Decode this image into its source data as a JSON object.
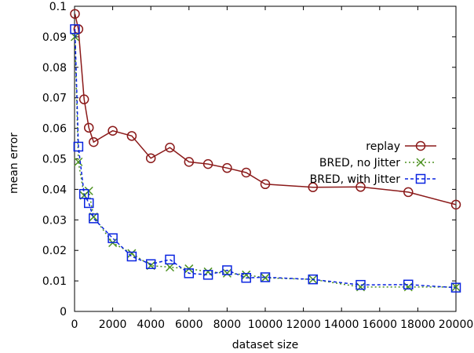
{
  "chart_data": {
    "type": "line",
    "xlabel": "dataset size",
    "ylabel": "mean error",
    "xlim": [
      0,
      20000
    ],
    "ylim": [
      0,
      0.1
    ],
    "x_ticks": [
      0,
      2000,
      4000,
      6000,
      8000,
      10000,
      12000,
      14000,
      16000,
      18000,
      20000
    ],
    "x_tick_labels": [
      "0",
      "2000",
      "4000",
      "6000",
      "8000",
      "10000",
      "12000",
      "14000",
      "16000",
      "18000",
      "20000"
    ],
    "y_ticks": [
      0,
      0.01,
      0.02,
      0.03,
      0.04,
      0.05,
      0.06,
      0.07,
      0.08,
      0.09,
      0.1
    ],
    "y_tick_labels": [
      "0",
      "0.01",
      "0.02",
      "0.03",
      "0.04",
      "0.05",
      "0.06",
      "0.07",
      "0.08",
      "0.09",
      "0.1"
    ],
    "grid": false,
    "legend_position": "top-right",
    "series": [
      {
        "name": "replay",
        "color": "#8b1a1a",
        "line": "solid",
        "marker": "circle",
        "x": [
          20,
          200,
          500,
          750,
          1000,
          2000,
          3000,
          4000,
          5000,
          6000,
          7000,
          8000,
          9000,
          10000,
          12500,
          15000,
          17500,
          20000
        ],
        "y": [
          0.0975,
          0.0925,
          0.0695,
          0.0602,
          0.0555,
          0.0592,
          0.0575,
          0.0502,
          0.0537,
          0.049,
          0.0483,
          0.047,
          0.0455,
          0.0417,
          0.0407,
          0.0408,
          0.0391,
          0.035
        ]
      },
      {
        "name": "BRED, no Jitter",
        "color": "#4d9221",
        "line": "dotted",
        "marker": "x",
        "x": [
          20,
          200,
          500,
          750,
          1000,
          2000,
          3000,
          4000,
          5000,
          6000,
          7000,
          8000,
          9000,
          10000,
          12500,
          15000,
          17500,
          20000
        ],
        "y": [
          0.09,
          0.049,
          0.038,
          0.0395,
          0.031,
          0.0225,
          0.019,
          0.015,
          0.0145,
          0.014,
          0.013,
          0.0125,
          0.012,
          0.011,
          0.0105,
          0.008,
          0.008,
          0.008
        ]
      },
      {
        "name": "BRED, with Jitter",
        "color": "#0a24e0",
        "line": "dashed",
        "marker": "square",
        "x": [
          20,
          200,
          500,
          750,
          1000,
          2000,
          3000,
          4000,
          5000,
          6000,
          7000,
          8000,
          9000,
          10000,
          12500,
          15000,
          17500,
          20000
        ],
        "y": [
          0.0925,
          0.054,
          0.0385,
          0.0355,
          0.0305,
          0.024,
          0.018,
          0.0155,
          0.017,
          0.0125,
          0.012,
          0.0135,
          0.011,
          0.0112,
          0.0105,
          0.0087,
          0.0088,
          0.0078
        ]
      }
    ]
  }
}
